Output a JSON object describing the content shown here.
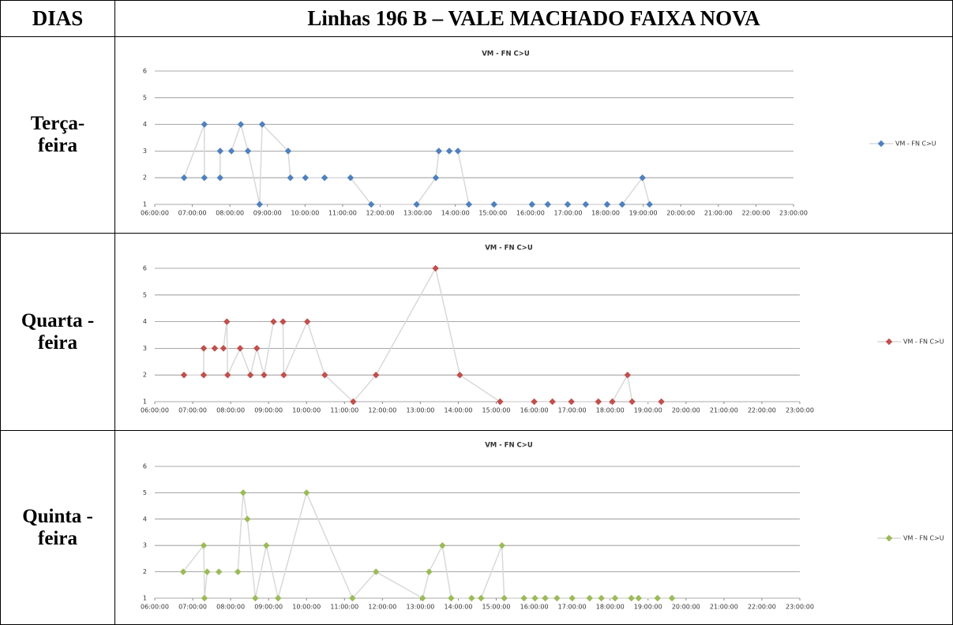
{
  "header": {
    "col1": "DIAS",
    "col2": "Linhas 196 B – VALE MACHADO FAIXA NOVA"
  },
  "rows": [
    {
      "day": "Terça-feira",
      "chart_data": {
        "type": "line",
        "title": "VM - FN C>U",
        "line_color": "#d9d9d9",
        "grid": true,
        "xlim": [
          6,
          23
        ],
        "ylim": [
          1,
          6
        ],
        "yticks": [
          1,
          2,
          3,
          4,
          5,
          6
        ],
        "xticks": [
          {
            "value": 6,
            "label": "06:00:00"
          },
          {
            "value": 7,
            "label": "07:00:00"
          },
          {
            "value": 8,
            "label": "08:00:00"
          },
          {
            "value": 9,
            "label": "09:00:00"
          },
          {
            "value": 10,
            "label": "10:00:00"
          },
          {
            "value": 11,
            "label": "11:00:00"
          },
          {
            "value": 12,
            "label": "12:00:00"
          },
          {
            "value": 13,
            "label": "13:00:00"
          },
          {
            "value": 14,
            "label": "14:00:00"
          },
          {
            "value": 15,
            "label": "15:00:00"
          },
          {
            "value": 16,
            "label": "16:00:00"
          },
          {
            "value": 17,
            "label": "17:00:00"
          },
          {
            "value": 18,
            "label": "18:00:00"
          },
          {
            "value": 19,
            "label": "19:00:00"
          },
          {
            "value": 20,
            "label": "20:00:00"
          },
          {
            "value": 21,
            "label": "21:00:00"
          },
          {
            "value": 22,
            "label": "22:00:00"
          },
          {
            "value": 23,
            "label": "23:00:00"
          }
        ],
        "series": [
          {
            "name": "VM - FN C>U",
            "color": "#4f81bd",
            "x": [
              6.78,
              7.32,
              7.32,
              7.74,
              7.74,
              8.04,
              8.29,
              8.48,
              8.79,
              8.86,
              9.55,
              9.61,
              10.01,
              10.52,
              11.21,
              11.76,
              12.97,
              13.48,
              13.56,
              13.84,
              14.07,
              14.36,
              15.03,
              16.04,
              16.46,
              16.99,
              17.47,
              18.04,
              18.44,
              18.98,
              19.17
            ],
            "values": [
              2,
              4,
              2,
              2,
              3,
              3,
              4,
              3,
              1,
              4,
              3,
              2,
              2,
              2,
              2,
              1,
              1,
              2,
              3,
              3,
              3,
              1,
              1,
              1,
              1,
              1,
              1,
              1,
              1,
              2,
              1
            ]
          }
        ]
      }
    },
    {
      "day": "Quarta -feira",
      "chart_data": {
        "type": "line",
        "title": "VM - FN C>U",
        "line_color": "#d9d9d9",
        "grid": true,
        "xlim": [
          6,
          23
        ],
        "ylim": [
          1,
          6
        ],
        "yticks": [
          1,
          2,
          3,
          4,
          5,
          6
        ],
        "xticks": [
          {
            "value": 6,
            "label": "06:00:00"
          },
          {
            "value": 7,
            "label": "07:00:00"
          },
          {
            "value": 8,
            "label": "08:00:00"
          },
          {
            "value": 9,
            "label": "09:00:00"
          },
          {
            "value": 10,
            "label": "10:00:00"
          },
          {
            "value": 11,
            "label": "11:00:00"
          },
          {
            "value": 12,
            "label": "12:00:00"
          },
          {
            "value": 13,
            "label": "13:00:00"
          },
          {
            "value": 14,
            "label": "14:00:00"
          },
          {
            "value": 15,
            "label": "15:00:00"
          },
          {
            "value": 16,
            "label": "16:00:00"
          },
          {
            "value": 17,
            "label": "17:00:00"
          },
          {
            "value": 18,
            "label": "18:00:00"
          },
          {
            "value": 19,
            "label": "19:00:00"
          },
          {
            "value": 20,
            "label": "20:00:00"
          },
          {
            "value": 21,
            "label": "21:00:00"
          },
          {
            "value": 22,
            "label": "22:00:00"
          },
          {
            "value": 23,
            "label": "23:00:00"
          }
        ],
        "series": [
          {
            "name": "VM - FN C>U",
            "color": "#c0504d",
            "x": [
              6.77,
              7.29,
              7.29,
              7.58,
              7.81,
              7.9,
              7.92,
              8.25,
              8.52,
              8.69,
              8.88,
              9.13,
              9.38,
              9.4,
              10.02,
              10.48,
              11.23,
              11.83,
              13.4,
              14.04,
              15.1,
              16.0,
              16.48,
              16.98,
              17.69,
              18.06,
              18.46,
              18.58,
              19.35
            ],
            "values": [
              2,
              2,
              3,
              3,
              3,
              4,
              2,
              3,
              2,
              3,
              2,
              4,
              4,
              2,
              4,
              2,
              1,
              2,
              6,
              2,
              1,
              1,
              1,
              1,
              1,
              1,
              2,
              1,
              1
            ]
          }
        ]
      }
    },
    {
      "day": "Quinta -feira",
      "chart_data": {
        "type": "line",
        "title": "VM - FN C>U",
        "line_color": "#d9d9d9",
        "grid": true,
        "xlim": [
          6,
          23
        ],
        "ylim": [
          1,
          6
        ],
        "yticks": [
          1,
          2,
          3,
          4,
          5,
          6
        ],
        "xticks": [
          {
            "value": 6,
            "label": "06:00:00"
          },
          {
            "value": 7,
            "label": "07:00:00"
          },
          {
            "value": 8,
            "label": "08:00:00"
          },
          {
            "value": 9,
            "label": "09:00:00"
          },
          {
            "value": 10,
            "label": "10:00:00"
          },
          {
            "value": 11,
            "label": "11:00:00"
          },
          {
            "value": 12,
            "label": "12:00:00"
          },
          {
            "value": 13,
            "label": "13:00:00"
          },
          {
            "value": 14,
            "label": "14:00:00"
          },
          {
            "value": 15,
            "label": "15:00:00"
          },
          {
            "value": 16,
            "label": "16:00:00"
          },
          {
            "value": 17,
            "label": "17:00:00"
          },
          {
            "value": 18,
            "label": "18:00:00"
          },
          {
            "value": 19,
            "label": "19:00:00"
          },
          {
            "value": 20,
            "label": "20:00:00"
          },
          {
            "value": 21,
            "label": "21:00:00"
          },
          {
            "value": 22,
            "label": "22:00:00"
          },
          {
            "value": 23,
            "label": "23:00:00"
          }
        ],
        "series": [
          {
            "name": "VM - FN C>U",
            "color": "#9bbb59",
            "x": [
              6.75,
              7.29,
              7.31,
              7.38,
              7.69,
              8.19,
              8.33,
              8.44,
              8.65,
              8.94,
              9.25,
              10.0,
              11.21,
              11.83,
              13.06,
              13.23,
              13.58,
              13.81,
              14.35,
              14.6,
              15.15,
              15.21,
              15.73,
              16.02,
              16.29,
              16.6,
              17.0,
              17.46,
              17.77,
              18.13,
              18.56,
              18.75,
              19.25,
              19.63
            ],
            "values": [
              2,
              3,
              1,
              2,
              2,
              2,
              5,
              4,
              1,
              3,
              1,
              5,
              1,
              2,
              1,
              2,
              3,
              1,
              1,
              1,
              3,
              1,
              1,
              1,
              1,
              1,
              1,
              1,
              1,
              1,
              1,
              1,
              1,
              1
            ]
          }
        ]
      }
    }
  ]
}
